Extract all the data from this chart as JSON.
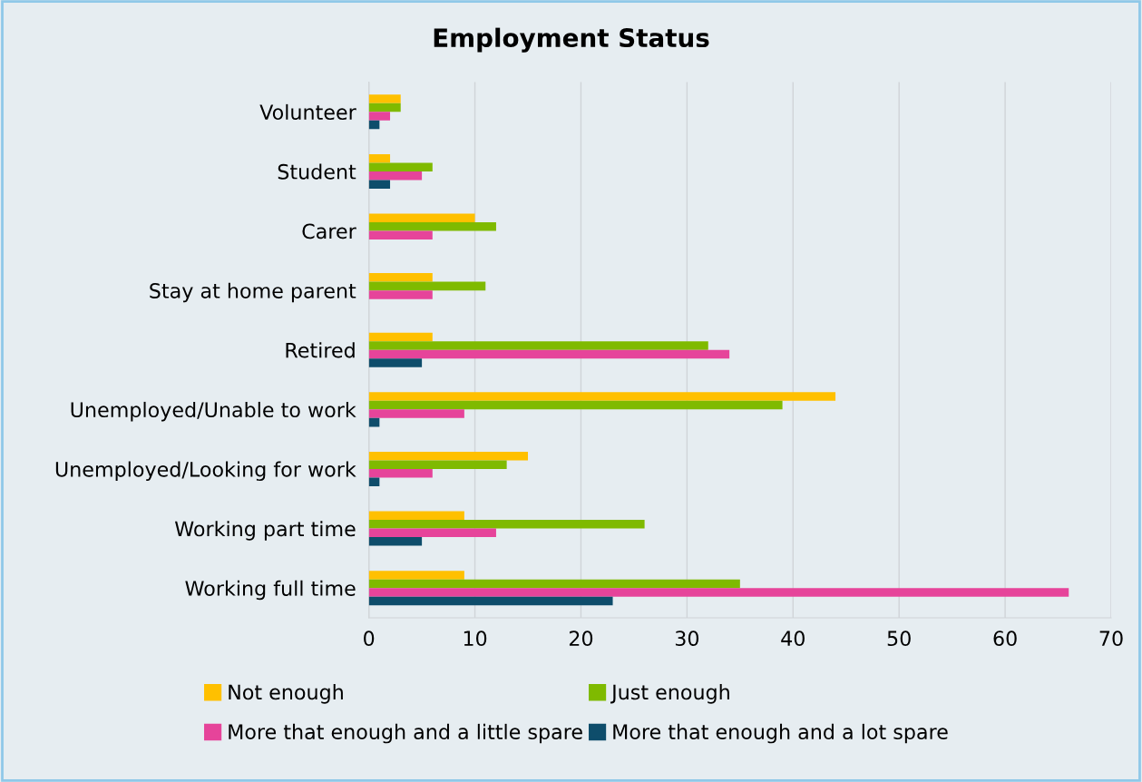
{
  "chart_data": {
    "type": "bar",
    "orientation": "horizontal",
    "title": "Employment Status",
    "categories": [
      "Volunteer",
      "Student",
      "Carer",
      "Stay at home parent",
      "Retired",
      "Unemployed/Unable to work",
      "Unemployed/Looking for work",
      "Working part time",
      "Working full time"
    ],
    "series": [
      {
        "name": "Not enough",
        "color": "#ffc000",
        "values": [
          3,
          2,
          10,
          6,
          6,
          44,
          15,
          9,
          9
        ]
      },
      {
        "name": "Just enough",
        "color": "#7fba00",
        "values": [
          3,
          6,
          12,
          11,
          32,
          39,
          13,
          26,
          35
        ]
      },
      {
        "name": "More that enough and a little spare",
        "color": "#e6449a",
        "values": [
          2,
          5,
          6,
          6,
          34,
          9,
          6,
          12,
          66
        ]
      },
      {
        "name": "More that enough and a lot spare",
        "color": "#0e4d6b",
        "values": [
          1,
          2,
          null,
          null,
          5,
          1,
          1,
          5,
          23
        ]
      }
    ],
    "xlim": [
      0,
      70
    ],
    "xticks": [
      0,
      10,
      20,
      30,
      40,
      50,
      60,
      70
    ],
    "grid": "x",
    "legend": "bottom"
  }
}
